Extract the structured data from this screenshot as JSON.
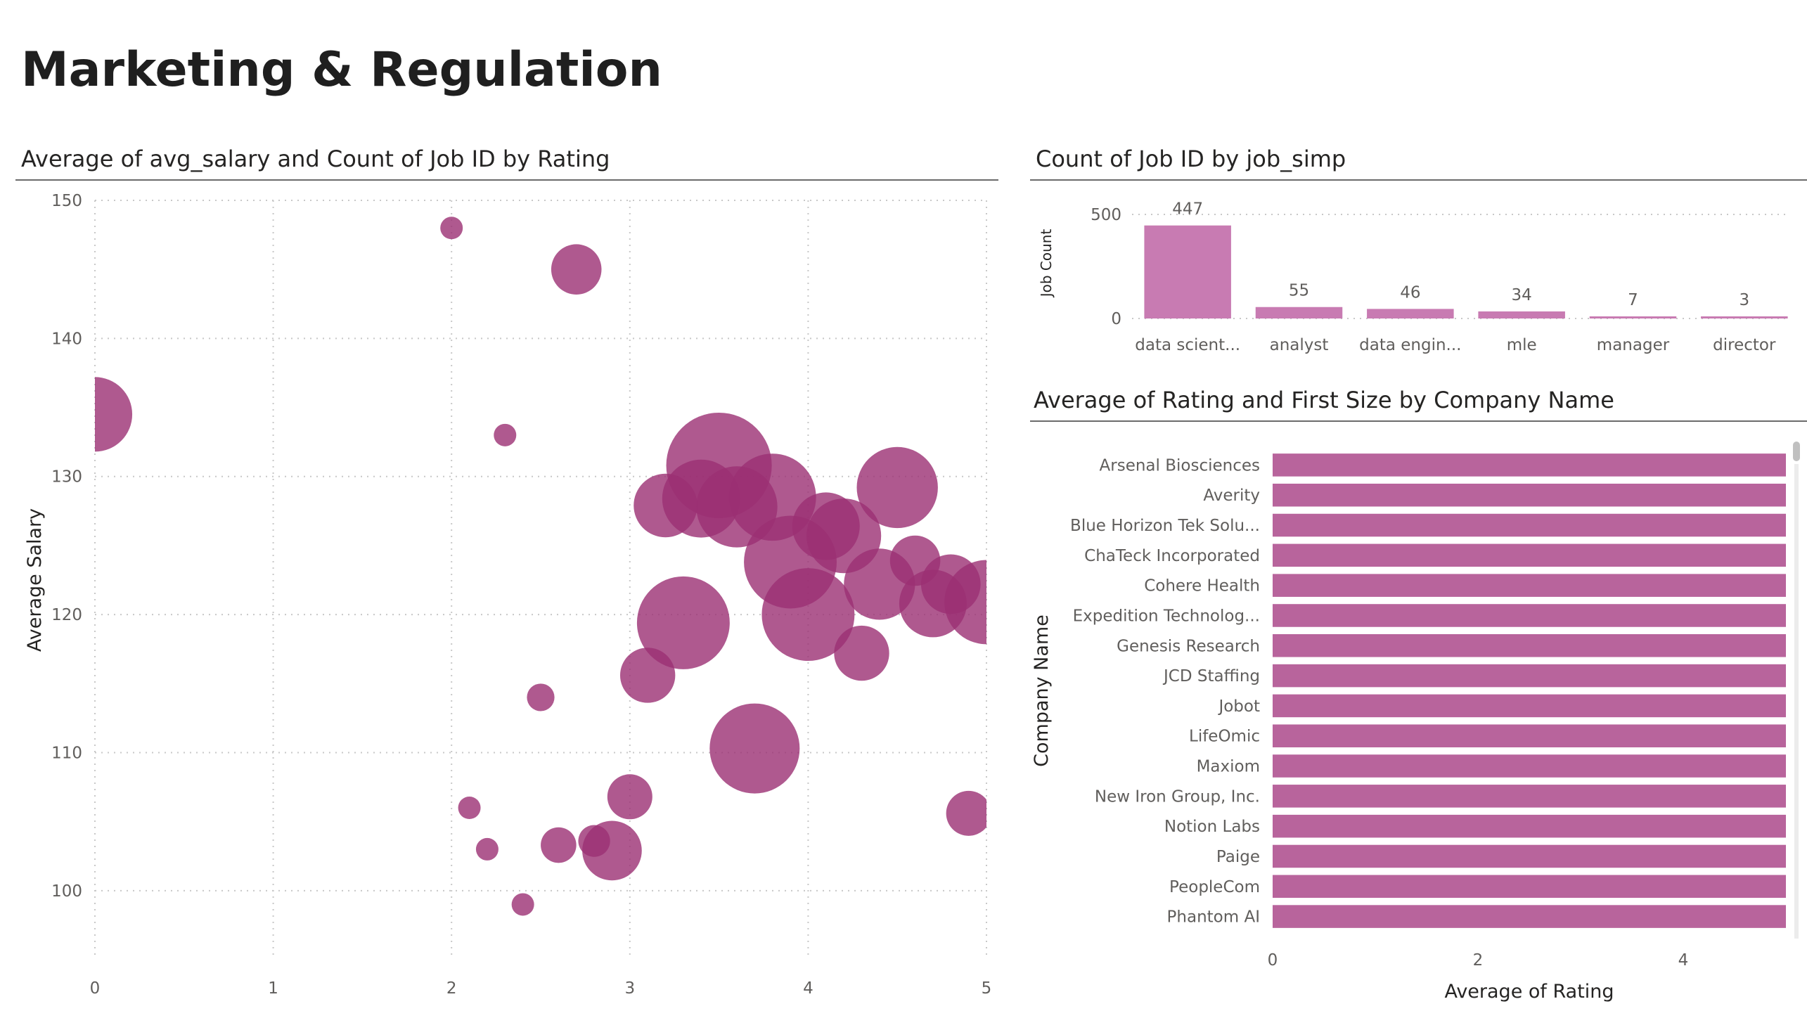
{
  "page": {
    "title": "Marketing & Regulation"
  },
  "colors": {
    "bubble": "#9b2f73",
    "bar": "#c87bb2",
    "company_bar": "#b8649c",
    "scrollbar": "#c0c0c0"
  },
  "chart_data": [
    {
      "id": "salary-rating",
      "type": "scatter",
      "title": "Average of avg_salary and Count of Job ID by Rating",
      "xlabel": "Rating",
      "ylabel": "Average Salary",
      "xlim": [
        0,
        5
      ],
      "ylim": [
        95,
        150
      ],
      "x_ticks": [
        0,
        1,
        2,
        3,
        4,
        5
      ],
      "y_ticks": [
        100,
        110,
        120,
        130,
        140,
        150
      ],
      "grid": true,
      "points": [
        {
          "x": 0.0,
          "y": 134.5,
          "size": 11
        },
        {
          "x": 2.0,
          "y": 148.0,
          "size": 1
        },
        {
          "x": 2.1,
          "y": 106.0,
          "size": 1
        },
        {
          "x": 2.2,
          "y": 103.0,
          "size": 1
        },
        {
          "x": 2.3,
          "y": 133.0,
          "size": 1
        },
        {
          "x": 2.4,
          "y": 99.0,
          "size": 1
        },
        {
          "x": 2.5,
          "y": 114.0,
          "size": 1.5
        },
        {
          "x": 2.6,
          "y": 103.3,
          "size": 2.5
        },
        {
          "x": 2.7,
          "y": 145.0,
          "size": 5
        },
        {
          "x": 2.8,
          "y": 103.6,
          "size": 2
        },
        {
          "x": 2.9,
          "y": 102.9,
          "size": 7
        },
        {
          "x": 3.0,
          "y": 106.8,
          "size": 4
        },
        {
          "x": 3.1,
          "y": 115.6,
          "size": 6
        },
        {
          "x": 3.2,
          "y": 127.9,
          "size": 8
        },
        {
          "x": 3.3,
          "y": 119.4,
          "size": 17
        },
        {
          "x": 3.4,
          "y": 128.4,
          "size": 12
        },
        {
          "x": 3.5,
          "y": 130.8,
          "size": 22
        },
        {
          "x": 3.6,
          "y": 127.8,
          "size": 13
        },
        {
          "x": 3.7,
          "y": 110.3,
          "size": 16
        },
        {
          "x": 3.8,
          "y": 128.5,
          "size": 15
        },
        {
          "x": 3.9,
          "y": 123.8,
          "size": 17
        },
        {
          "x": 4.0,
          "y": 120.0,
          "size": 17
        },
        {
          "x": 4.1,
          "y": 126.4,
          "size": 9
        },
        {
          "x": 4.2,
          "y": 125.7,
          "size": 11
        },
        {
          "x": 4.3,
          "y": 117.2,
          "size": 6
        },
        {
          "x": 4.4,
          "y": 122.2,
          "size": 10
        },
        {
          "x": 4.5,
          "y": 129.2,
          "size": 13
        },
        {
          "x": 4.6,
          "y": 123.9,
          "size": 5
        },
        {
          "x": 4.7,
          "y": 120.8,
          "size": 9
        },
        {
          "x": 4.8,
          "y": 122.2,
          "size": 7
        },
        {
          "x": 4.9,
          "y": 105.6,
          "size": 4
        },
        {
          "x": 5.0,
          "y": 120.9,
          "size": 14
        }
      ]
    },
    {
      "id": "job-count",
      "type": "bar",
      "title": "Count of Job ID by job_simp",
      "ylabel": "Job Count",
      "ylim": [
        0,
        500
      ],
      "y_ticks": [
        0,
        500
      ],
      "categories": [
        "data scient...",
        "analyst",
        "data engin...",
        "mle",
        "manager",
        "director"
      ],
      "values": [
        447,
        55,
        46,
        34,
        7,
        3
      ]
    },
    {
      "id": "company-rating",
      "type": "bar",
      "orientation": "horizontal",
      "title": "Average of Rating and First Size by Company Name",
      "xlabel": "Average of Rating",
      "ylabel": "Company Name",
      "xlim": [
        0,
        5
      ],
      "x_ticks": [
        0,
        2,
        4
      ],
      "categories": [
        "Arsenal Biosciences",
        "Averity",
        "Blue Horizon Tek Solu...",
        "ChaTeck Incorporated",
        "Cohere Health",
        "Expedition Technolog...",
        "Genesis Research",
        "JCD Staffing",
        "Jobot",
        "LifeOmic",
        "Maxiom",
        "New Iron Group, Inc.",
        "Notion Labs",
        "Paige",
        "PeopleCom",
        "Phantom AI"
      ],
      "values": [
        5,
        5,
        5,
        5,
        5,
        5,
        5,
        5,
        5,
        5,
        5,
        5,
        5,
        5,
        5,
        5
      ]
    }
  ]
}
